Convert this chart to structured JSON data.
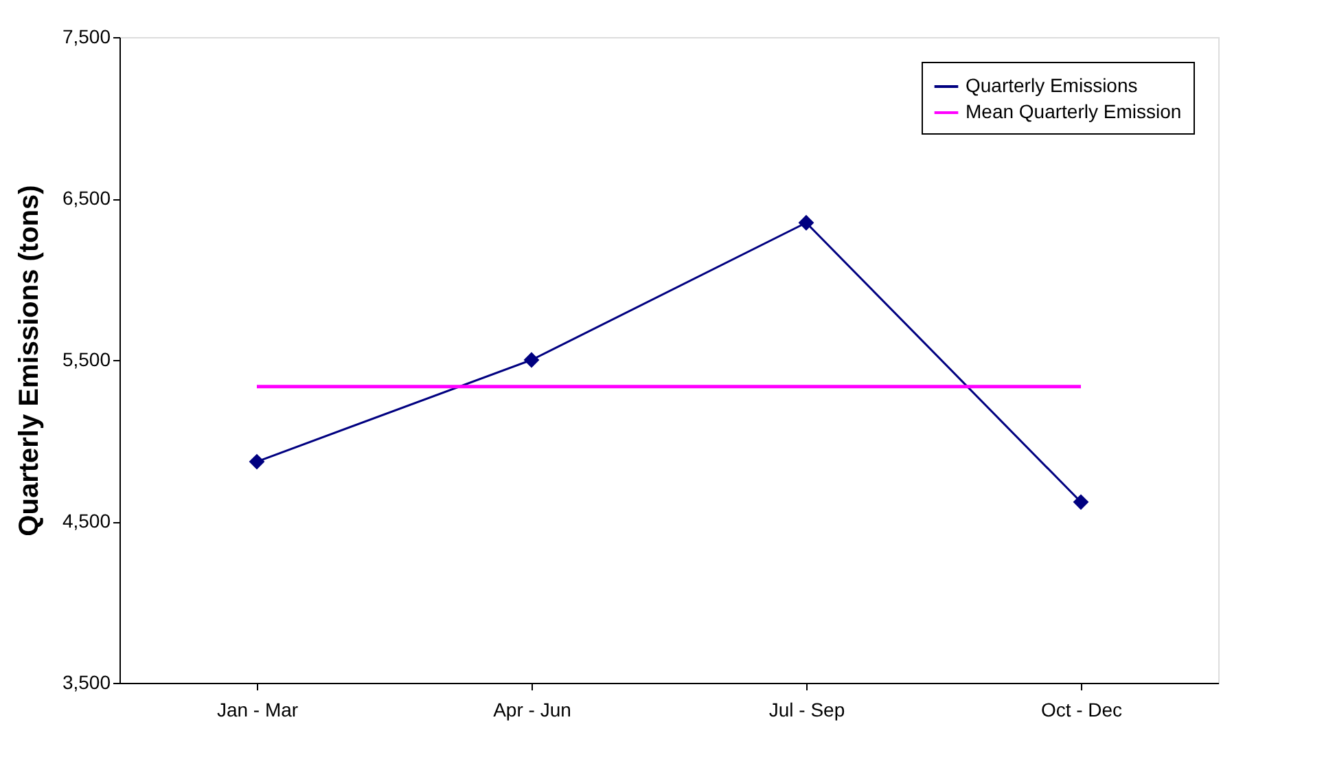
{
  "chart_data": {
    "type": "line",
    "ylabel": "Quarterly Emissions  (tons)",
    "categories": [
      "Jan - Mar",
      "Apr - Jun",
      "Jul - Sep",
      "Oct - Dec"
    ],
    "series": [
      {
        "name": "Quarterly Emissions",
        "color": "#000080",
        "values": [
          4870,
          5500,
          6350,
          4620
        ],
        "marker": "diamond"
      },
      {
        "name": "Mean Quarterly Emission",
        "color": "#ff00ff",
        "values": [
          5335,
          5335,
          5335,
          5335
        ],
        "marker": "none"
      }
    ],
    "ylim": [
      3500,
      7500
    ],
    "yticks": [
      {
        "value": 3500,
        "label": "3,500"
      },
      {
        "value": 4500,
        "label": "4,500"
      },
      {
        "value": 5500,
        "label": "5,500"
      },
      {
        "value": 6500,
        "label": "6,500"
      },
      {
        "value": 7500,
        "label": "7,500"
      }
    ],
    "grid": false,
    "legend": "top right"
  }
}
